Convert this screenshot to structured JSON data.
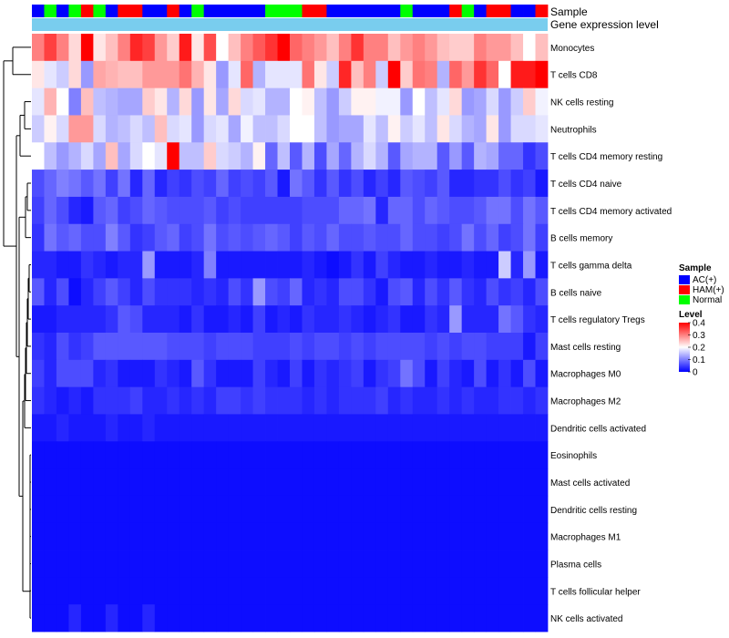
{
  "chart_data": {
    "type": "heatmap",
    "annotation_labels": [
      "Sample",
      "Gene expression level"
    ],
    "rows": [
      "Monocytes",
      "T cells CD8",
      "NK cells resting",
      "Neutrophils",
      "T cells CD4 memory resting",
      "T cells CD4 naive",
      "T cells CD4 memory activated",
      "B cells memory",
      "T cells gamma delta",
      "B cells naive",
      "T cells regulatory  Tregs",
      "Mast cells resting",
      "Macrophages M0",
      "Macrophages M2",
      "Dendritic cells activated",
      "Eosinophils",
      "Mast cells activated",
      "Dendritic cells resting",
      "Macrophages M1",
      "Plasma cells",
      "T cells follicular helper",
      "NK cells activated"
    ],
    "sample_groups": [
      "AC",
      "N",
      "AC",
      "N",
      "H",
      "N",
      "AC",
      "H",
      "H",
      "AC",
      "AC",
      "H",
      "AC",
      "N",
      "AC",
      "AC",
      "AC",
      "AC",
      "AC",
      "N",
      "N",
      "N",
      "H",
      "H",
      "AC",
      "AC",
      "AC",
      "AC",
      "AC",
      "AC",
      "N",
      "AC",
      "AC",
      "AC",
      "H",
      "N",
      "AC",
      "H",
      "H",
      "AC",
      "AC",
      "H"
    ],
    "values": [
      [
        0.3,
        0.35,
        0.3,
        0.23,
        0.4,
        0.22,
        0.25,
        0.3,
        0.37,
        0.35,
        0.28,
        0.24,
        0.38,
        0.22,
        0.34,
        0.2,
        0.25,
        0.3,
        0.33,
        0.36,
        0.4,
        0.32,
        0.3,
        0.28,
        0.25,
        0.3,
        0.36,
        0.3,
        0.3,
        0.25,
        0.28,
        0.3,
        0.28,
        0.25,
        0.24,
        0.24,
        0.3,
        0.28,
        0.28,
        0.25,
        0.2,
        0.25
      ],
      [
        0.22,
        0.18,
        0.16,
        0.23,
        0.12,
        0.27,
        0.26,
        0.25,
        0.25,
        0.28,
        0.28,
        0.28,
        0.31,
        0.26,
        0.22,
        0.12,
        0.18,
        0.32,
        0.14,
        0.18,
        0.18,
        0.18,
        0.31,
        0.22,
        0.16,
        0.37,
        0.25,
        0.3,
        0.16,
        0.4,
        0.24,
        0.31,
        0.3,
        0.14,
        0.32,
        0.28,
        0.36,
        0.32,
        0.2,
        0.38,
        0.38,
        0.4
      ],
      [
        0.18,
        0.26,
        0.2,
        0.1,
        0.25,
        0.15,
        0.14,
        0.13,
        0.13,
        0.24,
        0.22,
        0.14,
        0.23,
        0.12,
        0.22,
        0.13,
        0.23,
        0.17,
        0.18,
        0.14,
        0.14,
        0.2,
        0.21,
        0.15,
        0.12,
        0.16,
        0.21,
        0.21,
        0.19,
        0.19,
        0.12,
        0.2,
        0.15,
        0.18,
        0.23,
        0.12,
        0.13,
        0.17,
        0.12,
        0.16,
        0.24,
        0.19
      ],
      [
        0.16,
        0.21,
        0.17,
        0.28,
        0.28,
        0.17,
        0.14,
        0.15,
        0.17,
        0.15,
        0.25,
        0.17,
        0.18,
        0.12,
        0.17,
        0.18,
        0.13,
        0.19,
        0.15,
        0.15,
        0.17,
        0.2,
        0.2,
        0.15,
        0.12,
        0.13,
        0.13,
        0.18,
        0.15,
        0.21,
        0.16,
        0.18,
        0.15,
        0.22,
        0.17,
        0.14,
        0.13,
        0.22,
        0.12,
        0.17,
        0.17,
        0.18
      ],
      [
        0.2,
        0.15,
        0.12,
        0.14,
        0.17,
        0.13,
        0.25,
        0.13,
        0.17,
        0.2,
        0.18,
        0.4,
        0.15,
        0.15,
        0.24,
        0.17,
        0.16,
        0.14,
        0.21,
        0.08,
        0.15,
        0.07,
        0.14,
        0.06,
        0.13,
        0.08,
        0.14,
        0.17,
        0.14,
        0.07,
        0.13,
        0.14,
        0.14,
        0.07,
        0.12,
        0.07,
        0.14,
        0.13,
        0.08,
        0.08,
        0.04,
        0.06
      ],
      [
        0.06,
        0.08,
        0.1,
        0.09,
        0.07,
        0.09,
        0.05,
        0.09,
        0.03,
        0.08,
        0.03,
        0.05,
        0.04,
        0.06,
        0.05,
        0.08,
        0.05,
        0.06,
        0.05,
        0.07,
        0.02,
        0.09,
        0.07,
        0.04,
        0.07,
        0.04,
        0.06,
        0.03,
        0.05,
        0.03,
        0.07,
        0.06,
        0.05,
        0.07,
        0.03,
        0.03,
        0.04,
        0.04,
        0.06,
        0.04,
        0.05,
        0.02
      ],
      [
        0.05,
        0.08,
        0.06,
        0.03,
        0.02,
        0.07,
        0.08,
        0.05,
        0.06,
        0.08,
        0.07,
        0.06,
        0.06,
        0.06,
        0.07,
        0.05,
        0.06,
        0.05,
        0.05,
        0.05,
        0.05,
        0.05,
        0.06,
        0.06,
        0.06,
        0.08,
        0.08,
        0.09,
        0.03,
        0.08,
        0.08,
        0.06,
        0.08,
        0.07,
        0.06,
        0.06,
        0.07,
        0.09,
        0.09,
        0.06,
        0.09,
        0.07
      ],
      [
        0.04,
        0.09,
        0.07,
        0.08,
        0.06,
        0.06,
        0.1,
        0.07,
        0.04,
        0.05,
        0.07,
        0.08,
        0.05,
        0.06,
        0.09,
        0.06,
        0.07,
        0.06,
        0.07,
        0.08,
        0.07,
        0.05,
        0.07,
        0.06,
        0.08,
        0.06,
        0.06,
        0.07,
        0.06,
        0.06,
        0.08,
        0.06,
        0.06,
        0.05,
        0.06,
        0.09,
        0.06,
        0.08,
        0.05,
        0.06,
        0.09,
        0.05
      ],
      [
        0.03,
        0.03,
        0.02,
        0.02,
        0.04,
        0.03,
        0.02,
        0.03,
        0.03,
        0.12,
        0.02,
        0.02,
        0.02,
        0.03,
        0.1,
        0.02,
        0.02,
        0.02,
        0.02,
        0.02,
        0.02,
        0.02,
        0.03,
        0.02,
        0.01,
        0.02,
        0.04,
        0.02,
        0.05,
        0.03,
        0.02,
        0.02,
        0.03,
        0.02,
        0.02,
        0.03,
        0.02,
        0.02,
        0.16,
        0.03,
        0.12,
        0.02
      ],
      [
        0.07,
        0.03,
        0.06,
        0.01,
        0.03,
        0.05,
        0.07,
        0.05,
        0.03,
        0.06,
        0.04,
        0.04,
        0.04,
        0.03,
        0.04,
        0.03,
        0.06,
        0.04,
        0.12,
        0.06,
        0.05,
        0.08,
        0.03,
        0.04,
        0.03,
        0.06,
        0.06,
        0.04,
        0.02,
        0.06,
        0.07,
        0.03,
        0.06,
        0.04,
        0.07,
        0.04,
        0.03,
        0.06,
        0.04,
        0.05,
        0.03,
        0.06
      ],
      [
        0.02,
        0.02,
        0.03,
        0.03,
        0.03,
        0.03,
        0.04,
        0.07,
        0.06,
        0.03,
        0.03,
        0.03,
        0.02,
        0.04,
        0.02,
        0.02,
        0.03,
        0.02,
        0.05,
        0.02,
        0.03,
        0.02,
        0.04,
        0.03,
        0.03,
        0.04,
        0.03,
        0.02,
        0.03,
        0.04,
        0.02,
        0.02,
        0.04,
        0.03,
        0.12,
        0.03,
        0.03,
        0.03,
        0.09,
        0.07,
        0.04,
        0.03
      ],
      [
        0.04,
        0.03,
        0.06,
        0.04,
        0.05,
        0.07,
        0.07,
        0.07,
        0.07,
        0.07,
        0.07,
        0.06,
        0.06,
        0.06,
        0.05,
        0.06,
        0.06,
        0.06,
        0.05,
        0.05,
        0.05,
        0.06,
        0.05,
        0.06,
        0.06,
        0.05,
        0.06,
        0.05,
        0.06,
        0.06,
        0.06,
        0.06,
        0.05,
        0.06,
        0.05,
        0.06,
        0.06,
        0.05,
        0.05,
        0.05,
        0.02,
        0.05
      ],
      [
        0.05,
        0.03,
        0.06,
        0.06,
        0.06,
        0.03,
        0.04,
        0.02,
        0.02,
        0.02,
        0.04,
        0.03,
        0.02,
        0.07,
        0.04,
        0.02,
        0.02,
        0.02,
        0.05,
        0.03,
        0.02,
        0.05,
        0.02,
        0.04,
        0.03,
        0.04,
        0.05,
        0.02,
        0.04,
        0.05,
        0.09,
        0.06,
        0.02,
        0.05,
        0.03,
        0.02,
        0.06,
        0.02,
        0.04,
        0.02,
        0.06,
        0.02
      ],
      [
        0.04,
        0.03,
        0.02,
        0.03,
        0.02,
        0.04,
        0.04,
        0.04,
        0.05,
        0.03,
        0.03,
        0.04,
        0.03,
        0.04,
        0.03,
        0.05,
        0.05,
        0.04,
        0.05,
        0.04,
        0.04,
        0.04,
        0.03,
        0.04,
        0.03,
        0.04,
        0.04,
        0.04,
        0.05,
        0.03,
        0.04,
        0.03,
        0.03,
        0.04,
        0.03,
        0.04,
        0.03,
        0.03,
        0.04,
        0.04,
        0.03,
        0.04
      ],
      [
        0.02,
        0.02,
        0.03,
        0.02,
        0.02,
        0.02,
        0.03,
        0.02,
        0.02,
        0.03,
        0.02,
        0.02,
        0.02,
        0.02,
        0.02,
        0.02,
        0.02,
        0.02,
        0.02,
        0.02,
        0.02,
        0.02,
        0.02,
        0.02,
        0.02,
        0.02,
        0.02,
        0.02,
        0.02,
        0.02,
        0.02,
        0.02,
        0.02,
        0.02,
        0.02,
        0.02,
        0.02,
        0.02,
        0.02,
        0.02,
        0.02,
        0.02
      ],
      [
        0.01,
        0.01,
        0.01,
        0.01,
        0.01,
        0.01,
        0.01,
        0.01,
        0.01,
        0.01,
        0.01,
        0.01,
        0.01,
        0.01,
        0.01,
        0.01,
        0.01,
        0.01,
        0.01,
        0.01,
        0.01,
        0.01,
        0.01,
        0.01,
        0.01,
        0.01,
        0.01,
        0.01,
        0.01,
        0.01,
        0.01,
        0.01,
        0.01,
        0.01,
        0.01,
        0.01,
        0.01,
        0.01,
        0.01,
        0.01,
        0.01,
        0.01
      ],
      [
        0.01,
        0.01,
        0.01,
        0.01,
        0.01,
        0.01,
        0.01,
        0.01,
        0.01,
        0.01,
        0.01,
        0.01,
        0.01,
        0.01,
        0.01,
        0.01,
        0.01,
        0.01,
        0.01,
        0.01,
        0.01,
        0.01,
        0.01,
        0.01,
        0.01,
        0.01,
        0.01,
        0.01,
        0.01,
        0.01,
        0.01,
        0.01,
        0.01,
        0.01,
        0.01,
        0.01,
        0.01,
        0.01,
        0.01,
        0.01,
        0.01,
        0.01
      ],
      [
        0.01,
        0.01,
        0.01,
        0.01,
        0.01,
        0.01,
        0.01,
        0.01,
        0.01,
        0.01,
        0.01,
        0.01,
        0.01,
        0.01,
        0.01,
        0.01,
        0.01,
        0.01,
        0.01,
        0.01,
        0.01,
        0.01,
        0.01,
        0.01,
        0.01,
        0.01,
        0.01,
        0.01,
        0.01,
        0.01,
        0.01,
        0.01,
        0.01,
        0.01,
        0.01,
        0.01,
        0.01,
        0.01,
        0.01,
        0.01,
        0.01,
        0.01
      ],
      [
        0.01,
        0.01,
        0.01,
        0.01,
        0.01,
        0.01,
        0.01,
        0.01,
        0.01,
        0.01,
        0.01,
        0.01,
        0.01,
        0.01,
        0.01,
        0.01,
        0.01,
        0.01,
        0.01,
        0.01,
        0.01,
        0.01,
        0.01,
        0.01,
        0.01,
        0.01,
        0.01,
        0.01,
        0.01,
        0.01,
        0.01,
        0.01,
        0.01,
        0.01,
        0.01,
        0.01,
        0.01,
        0.01,
        0.01,
        0.01,
        0.01,
        0.01
      ],
      [
        0.01,
        0.01,
        0.01,
        0.01,
        0.01,
        0.01,
        0.01,
        0.01,
        0.01,
        0.01,
        0.01,
        0.01,
        0.01,
        0.01,
        0.01,
        0.01,
        0.01,
        0.01,
        0.01,
        0.01,
        0.01,
        0.01,
        0.01,
        0.01,
        0.01,
        0.01,
        0.01,
        0.01,
        0.01,
        0.01,
        0.01,
        0.01,
        0.01,
        0.01,
        0.01,
        0.01,
        0.01,
        0.01,
        0.01,
        0.01,
        0.01,
        0.01
      ],
      [
        0.01,
        0.01,
        0.01,
        0.01,
        0.01,
        0.01,
        0.01,
        0.01,
        0.01,
        0.01,
        0.01,
        0.01,
        0.01,
        0.01,
        0.01,
        0.01,
        0.01,
        0.01,
        0.01,
        0.01,
        0.01,
        0.01,
        0.01,
        0.01,
        0.01,
        0.01,
        0.01,
        0.01,
        0.01,
        0.01,
        0.01,
        0.01,
        0.01,
        0.01,
        0.01,
        0.01,
        0.01,
        0.01,
        0.01,
        0.01,
        0.01,
        0.01
      ],
      [
        0.01,
        0.01,
        0.01,
        0.03,
        0.01,
        0.01,
        0.03,
        0.01,
        0.01,
        0.03,
        0.01,
        0.01,
        0.01,
        0.01,
        0.01,
        0.01,
        0.01,
        0.01,
        0.01,
        0.01,
        0.01,
        0.01,
        0.01,
        0.01,
        0.01,
        0.01,
        0.01,
        0.01,
        0.01,
        0.01,
        0.01,
        0.01,
        0.01,
        0.01,
        0.01,
        0.01,
        0.01,
        0.01,
        0.01,
        0.01,
        0.01,
        0.01
      ]
    ],
    "color_scale": {
      "min": 0,
      "max": 0.4,
      "stops": [
        [
          0,
          "#0000ff"
        ],
        [
          0.2,
          "#ffffff"
        ],
        [
          0.4,
          "#ff0000"
        ]
      ]
    },
    "legend": {
      "sample_title": "Sample",
      "sample_entries": [
        {
          "key": "AC",
          "label": "AC(+)",
          "color": "#0000ff"
        },
        {
          "key": "H",
          "label": "HAM(+)",
          "color": "#ff0000"
        },
        {
          "key": "N",
          "label": "Normal",
          "color": "#00ff00"
        }
      ],
      "level_title": "Level",
      "level_ticks": [
        0.4,
        0.3,
        0.2,
        0.1,
        0
      ]
    },
    "colors": {
      "annotation_gene": "#79cdee",
      "dendrogram": "#000000"
    }
  }
}
